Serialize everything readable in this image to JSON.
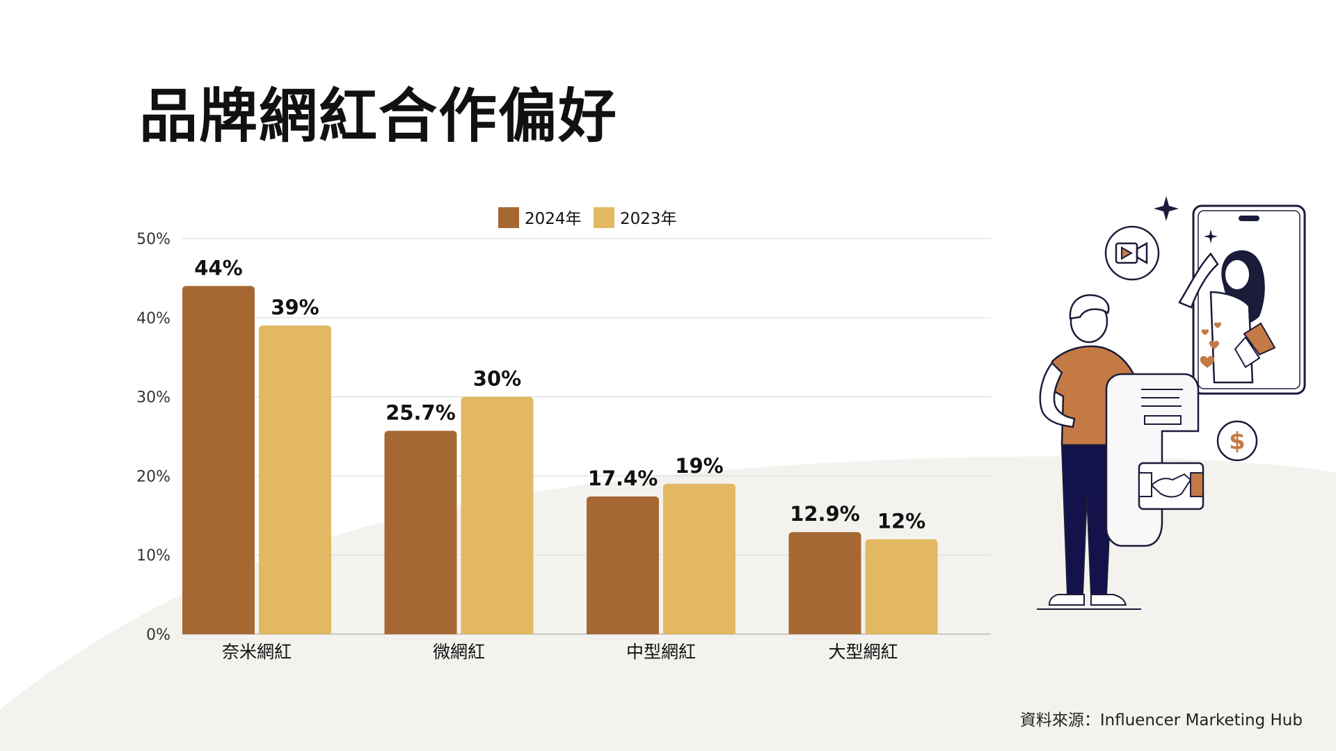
{
  "title": "品牌網紅合作偏好",
  "source": "資料來源：Influencer Marketing Hub",
  "colors": {
    "series_2024": "#A66833",
    "series_2023": "#E2B862",
    "background_wave": "#F3F2EE",
    "grid": "#DDDDDD",
    "text": "#111111"
  },
  "illustration": {
    "icons": [
      "video-camera-icon",
      "sparkle-icon",
      "smartphone-icon",
      "dollar-coin-icon",
      "handshake-icon",
      "heart-icon",
      "megaphone-icon",
      "receipt-icon"
    ]
  },
  "chart_data": {
    "type": "bar",
    "title": "",
    "xlabel": "",
    "ylabel": "",
    "categories": [
      "奈米網紅",
      "微網紅",
      "中型網紅",
      "大型網紅"
    ],
    "series": [
      {
        "name": "2024年",
        "values": [
          44,
          25.7,
          17.4,
          12.9
        ],
        "labels": [
          "44%",
          "25.7%",
          "17.4%",
          "12.9%"
        ]
      },
      {
        "name": "2023年",
        "values": [
          39,
          30,
          19,
          12
        ],
        "labels": [
          "39%",
          "30%",
          "19%",
          "12%"
        ]
      }
    ],
    "ylim": [
      0,
      50
    ],
    "yticks": [
      0,
      10,
      20,
      30,
      40,
      50
    ],
    "ytick_labels": [
      "0%",
      "10%",
      "20%",
      "30%",
      "40%",
      "50%"
    ],
    "grid": true,
    "legend": "top-center"
  }
}
